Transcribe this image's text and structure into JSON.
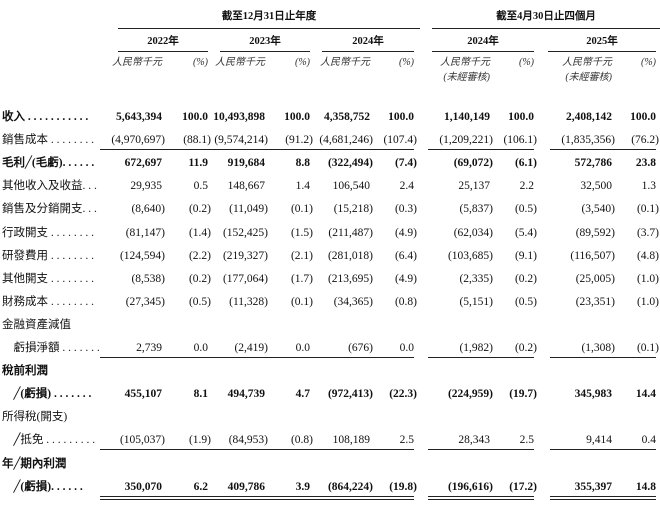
{
  "header": {
    "groups": [
      {
        "label": "截至12月31日止年度"
      },
      {
        "label": "截至4月30日止四個月"
      }
    ],
    "years": [
      "2022年",
      "2023年",
      "2024年",
      "2024年",
      "2025年"
    ],
    "units": [
      {
        "amount": "人民幣千元",
        "pct": "(%)"
      },
      {
        "amount": "人民幣千元",
        "pct": "(%)"
      },
      {
        "amount": "人民幣千元",
        "pct": "(%)"
      },
      {
        "amount": "人民幣千元",
        "pct": "(%)",
        "note": "(未經審核)"
      },
      {
        "amount": "人民幣千元",
        "pct": "(%)",
        "note": "(未經審核)"
      }
    ]
  },
  "table": {
    "rows": [
      {
        "label": [
          "收入 . . . . . . . . . . ."
        ],
        "bold": true,
        "values": [
          "5,643,394",
          "100.0",
          "10,493,898",
          "100.0",
          "4,358,752",
          "100.0",
          "1,140,149",
          "100.0",
          "2,408,142",
          "100.0"
        ]
      },
      {
        "label": [
          "銷售成本 . . . . . . . ."
        ],
        "rule": "single",
        "values": [
          "(4,970,697)",
          "(88.1)",
          "(9,574,214)",
          "(91.2)",
          "(4,681,246)",
          "(107.4)",
          "(1,209,221)",
          "(106.1)",
          "(1,835,356)",
          "(76.2)"
        ]
      },
      {
        "label": [
          "毛利╱(毛虧). . . . . ."
        ],
        "bold": true,
        "values": [
          "672,697",
          "11.9",
          "919,684",
          "8.8",
          "(322,494)",
          "(7.4)",
          "(69,072)",
          "(6.1)",
          "572,786",
          "23.8"
        ]
      },
      {
        "label": [
          "其他收入及收益. . ."
        ],
        "values": [
          "29,935",
          "0.5",
          "148,667",
          "1.4",
          "106,540",
          "2.4",
          "25,137",
          "2.2",
          "32,500",
          "1.3"
        ]
      },
      {
        "label": [
          "銷售及分銷開支. . ."
        ],
        "values": [
          "(8,640)",
          "(0.2)",
          "(11,049)",
          "(0.1)",
          "(15,218)",
          "(0.3)",
          "(5,837)",
          "(0.5)",
          "(3,540)",
          "(0.1)"
        ]
      },
      {
        "label": [
          "行政開支 . . . . . . . ."
        ],
        "values": [
          "(81,147)",
          "(1.4)",
          "(152,425)",
          "(1.5)",
          "(211,487)",
          "(4.9)",
          "(62,034)",
          "(5.4)",
          "(89,592)",
          "(3.7)"
        ]
      },
      {
        "label": [
          "研發費用 . . . . . . . ."
        ],
        "values": [
          "(124,594)",
          "(2.2)",
          "(219,327)",
          "(2.1)",
          "(281,018)",
          "(6.4)",
          "(103,685)",
          "(9.1)",
          "(116,507)",
          "(4.8)"
        ]
      },
      {
        "label": [
          "其他開支 . . . . . . . ."
        ],
        "values": [
          "(8,538)",
          "(0.2)",
          "(177,064)",
          "(1.7)",
          "(213,695)",
          "(4.9)",
          "(2,335)",
          "(0.2)",
          "(25,005)",
          "(1.0)"
        ]
      },
      {
        "label": [
          "財務成本 . . . . . . . ."
        ],
        "values": [
          "(27,345)",
          "(0.5)",
          "(11,328)",
          "(0.1)",
          "(34,365)",
          "(0.8)",
          "(5,151)",
          "(0.5)",
          "(23,351)",
          "(1.0)"
        ]
      },
      {
        "label": [
          "金融資產減值",
          "　虧損淨額 . . . . . . ."
        ],
        "rule": "single",
        "values": [
          "2,739",
          "0.0",
          "(2,419)",
          "0.0",
          "(676)",
          "0.0",
          "(1,982)",
          "(0.2)",
          "(1,308)",
          "(0.1)"
        ]
      },
      {
        "label": [
          "稅前利潤",
          "　╱(虧損) . . . . . . ."
        ],
        "bold": true,
        "values": [
          "455,107",
          "8.1",
          "494,739",
          "4.7",
          "(972,413)",
          "(22.3)",
          "(224,959)",
          "(19.7)",
          "345,983",
          "14.4"
        ]
      },
      {
        "label": [
          "所得稅(開支)",
          "　╱抵免 . . . . . . . . ."
        ],
        "rule": "single",
        "values": [
          "(105,037)",
          "(1.9)",
          "(84,953)",
          "(0.8)",
          "108,189",
          "2.5",
          "28,343",
          "2.5",
          "9,414",
          "0.4"
        ]
      },
      {
        "label": [
          "年╱期內利潤",
          "　╱(虧損). . . . . ."
        ],
        "bold": true,
        "rule": "double",
        "values": [
          "350,070",
          "6.2",
          "409,786",
          "3.9",
          "(864,224)",
          "(19.8)",
          "(196,616)",
          "(17.2)",
          "355,397",
          "14.8"
        ]
      }
    ]
  }
}
